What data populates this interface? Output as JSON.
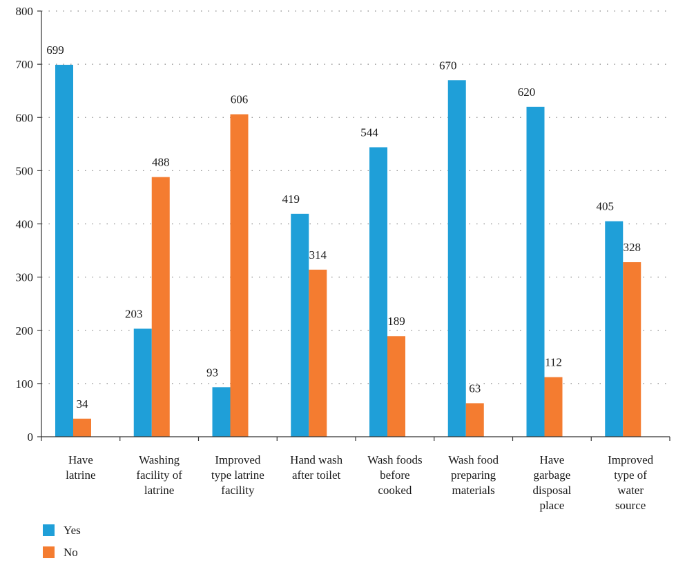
{
  "chart_data": {
    "type": "bar",
    "categories": [
      [
        "Have",
        "latrine"
      ],
      [
        "Washing",
        "facility of",
        "latrine"
      ],
      [
        "Improved",
        "type latrine",
        "facility"
      ],
      [
        "Hand wash",
        "after toilet"
      ],
      [
        "Wash foods",
        "before",
        "cooked"
      ],
      [
        "Wash food",
        "preparing",
        "materials"
      ],
      [
        "Have",
        "garbage",
        "disposal",
        "place"
      ],
      [
        "Improved",
        "type of",
        "water",
        "source"
      ]
    ],
    "series": [
      {
        "name": "Yes",
        "color": "#1f9fd8",
        "values": [
          699,
          203,
          93,
          419,
          544,
          670,
          620,
          405
        ]
      },
      {
        "name": "No",
        "color": "#f47c30",
        "values": [
          34,
          488,
          606,
          314,
          189,
          63,
          112,
          328
        ]
      }
    ],
    "ylim": [
      0,
      800
    ],
    "yticks": [
      0,
      100,
      200,
      300,
      400,
      500,
      600,
      700,
      800
    ],
    "grid": true,
    "legend_position": "bottom-left"
  }
}
